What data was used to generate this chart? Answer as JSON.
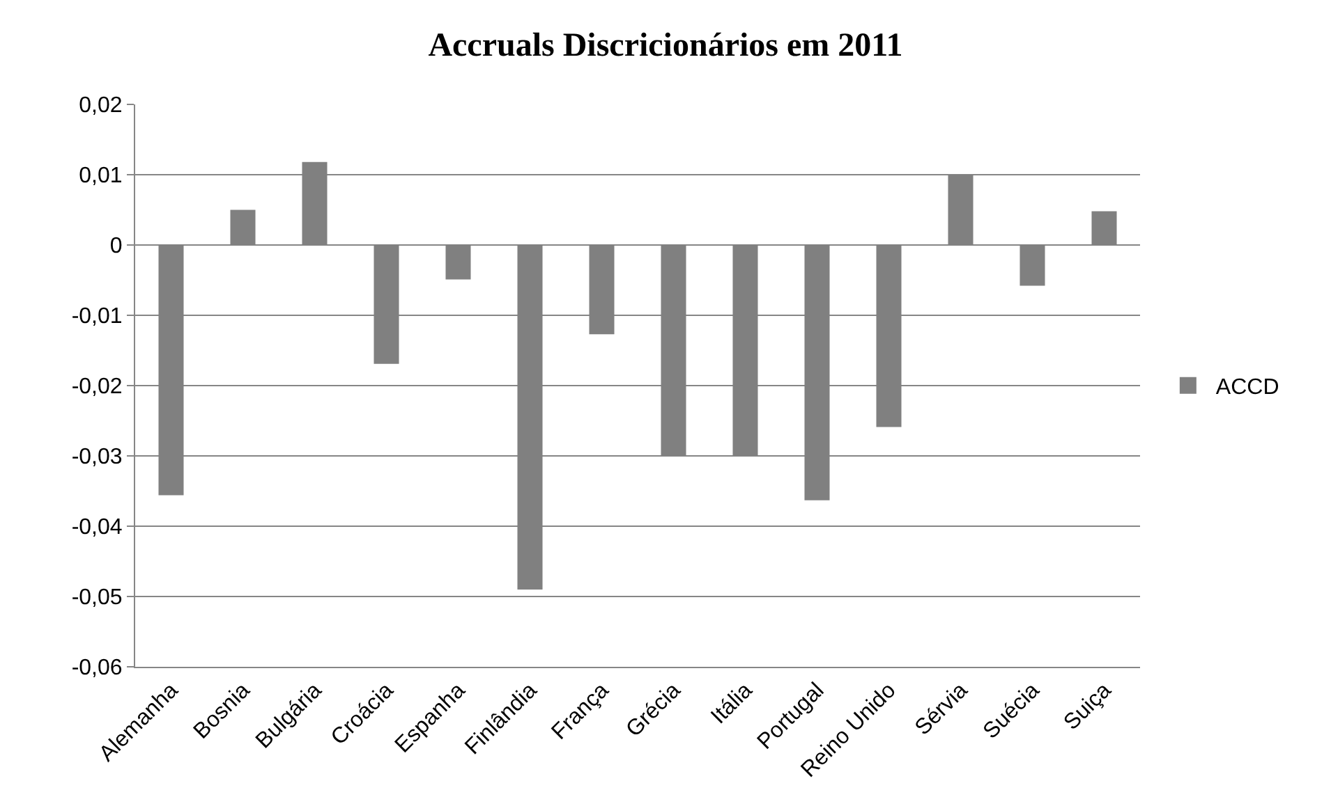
{
  "chart_data": {
    "type": "bar",
    "title": "Accruals Discricionários em 2011",
    "categories": [
      "Alemanha",
      "Bosnia",
      "Bulgária",
      "Croácia",
      "Espanha",
      "Finlândia",
      "França",
      "Grécia",
      "Itália",
      "Portugal",
      "Reino Unido",
      "Sérvia",
      "Suécia",
      "Suiça"
    ],
    "series": [
      {
        "name": "ACCD",
        "color": "#808080",
        "values": [
          -0.0356,
          0.005,
          0.0118,
          -0.0169,
          -0.0049,
          -0.049,
          -0.0127,
          -0.03,
          -0.03,
          -0.0363,
          -0.0259,
          0.01,
          -0.0058,
          0.0048
        ]
      }
    ],
    "ylim": [
      -0.06,
      0.02
    ],
    "yticks": [
      {
        "value": -0.06,
        "label": "-0,06"
      },
      {
        "value": -0.05,
        "label": "-0,05"
      },
      {
        "value": -0.04,
        "label": "-0,04"
      },
      {
        "value": -0.03,
        "label": "-0,03"
      },
      {
        "value": -0.02,
        "label": "-0,02"
      },
      {
        "value": -0.01,
        "label": "-0,01"
      },
      {
        "value": 0,
        "label": "0"
      },
      {
        "value": 0.01,
        "label": "0,01"
      },
      {
        "value": 0.02,
        "label": "0,02"
      }
    ],
    "grid": "y",
    "legend": "right"
  }
}
